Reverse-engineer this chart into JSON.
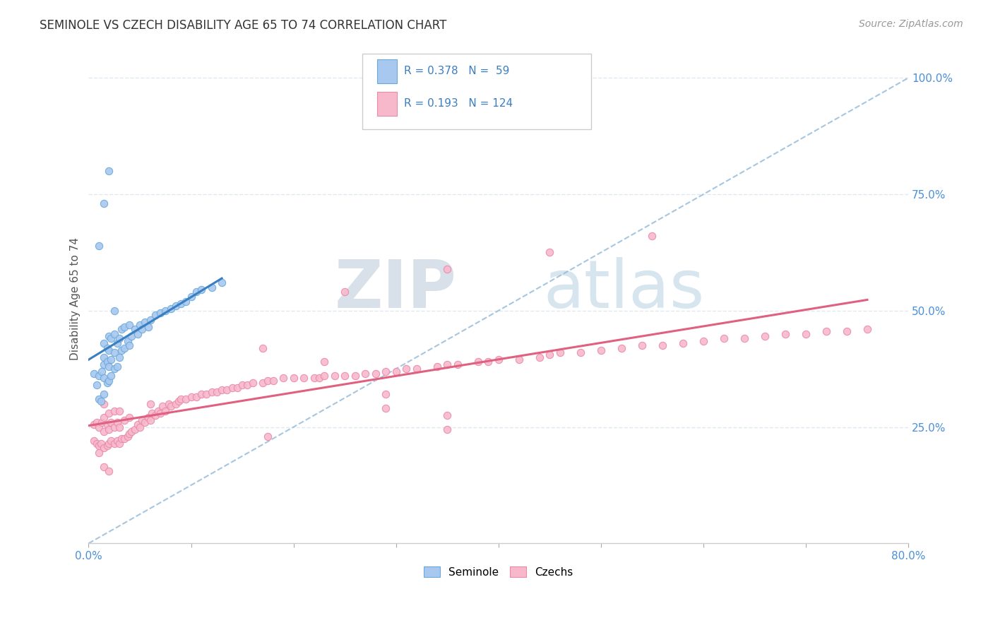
{
  "title": "SEMINOLE VS CZECH DISABILITY AGE 65 TO 74 CORRELATION CHART",
  "source_text": "Source: ZipAtlas.com",
  "ylabel": "Disability Age 65 to 74",
  "xlim": [
    0.0,
    0.8
  ],
  "ylim": [
    0.0,
    1.05
  ],
  "xticks": [
    0.0,
    0.1,
    0.2,
    0.3,
    0.4,
    0.5,
    0.6,
    0.7,
    0.8
  ],
  "xticklabels": [
    "0.0%",
    "",
    "",
    "",
    "",
    "",
    "",
    "",
    "80.0%"
  ],
  "ytick_positions": [
    0.25,
    0.5,
    0.75,
    1.0
  ],
  "ytick_labels": [
    "25.0%",
    "50.0%",
    "75.0%",
    "100.0%"
  ],
  "legend_r1": "R = 0.378",
  "legend_n1": "N =  59",
  "legend_r2": "R = 0.193",
  "legend_n2": "N = 124",
  "color_seminole_fill": "#a8c8f0",
  "color_seminole_edge": "#6aaad8",
  "color_czechs_fill": "#f8b8cc",
  "color_czechs_edge": "#e88aaa",
  "color_trend_seminole": "#3a7fc1",
  "color_trend_czechs": "#e06080",
  "color_ref_line": "#90b8d8",
  "color_grid": "#e0e8f0",
  "seminole_x": [
    0.005,
    0.008,
    0.01,
    0.01,
    0.012,
    0.013,
    0.015,
    0.015,
    0.015,
    0.015,
    0.015,
    0.018,
    0.018,
    0.018,
    0.02,
    0.02,
    0.02,
    0.02,
    0.022,
    0.022,
    0.022,
    0.025,
    0.025,
    0.025,
    0.028,
    0.028,
    0.03,
    0.03,
    0.032,
    0.032,
    0.035,
    0.035,
    0.038,
    0.04,
    0.04,
    0.042,
    0.045,
    0.048,
    0.05,
    0.052,
    0.055,
    0.058,
    0.06,
    0.065,
    0.07,
    0.075,
    0.08,
    0.085,
    0.09,
    0.095,
    0.1,
    0.105,
    0.11,
    0.12,
    0.13,
    0.01,
    0.015,
    0.02,
    0.025
  ],
  "seminole_y": [
    0.365,
    0.34,
    0.31,
    0.36,
    0.305,
    0.37,
    0.32,
    0.355,
    0.385,
    0.4,
    0.43,
    0.345,
    0.39,
    0.42,
    0.35,
    0.38,
    0.415,
    0.445,
    0.36,
    0.395,
    0.44,
    0.375,
    0.41,
    0.45,
    0.38,
    0.43,
    0.4,
    0.44,
    0.415,
    0.46,
    0.42,
    0.465,
    0.435,
    0.425,
    0.47,
    0.445,
    0.46,
    0.45,
    0.47,
    0.46,
    0.475,
    0.465,
    0.48,
    0.49,
    0.495,
    0.5,
    0.505,
    0.51,
    0.515,
    0.52,
    0.53,
    0.54,
    0.545,
    0.55,
    0.56,
    0.64,
    0.73,
    0.8,
    0.5
  ],
  "czech_x": [
    0.005,
    0.005,
    0.008,
    0.008,
    0.01,
    0.01,
    0.012,
    0.013,
    0.015,
    0.015,
    0.015,
    0.015,
    0.018,
    0.018,
    0.02,
    0.02,
    0.02,
    0.022,
    0.022,
    0.025,
    0.025,
    0.025,
    0.028,
    0.028,
    0.03,
    0.03,
    0.03,
    0.032,
    0.035,
    0.035,
    0.038,
    0.04,
    0.04,
    0.042,
    0.045,
    0.048,
    0.05,
    0.052,
    0.055,
    0.058,
    0.06,
    0.06,
    0.062,
    0.065,
    0.068,
    0.07,
    0.072,
    0.075,
    0.078,
    0.08,
    0.085,
    0.088,
    0.09,
    0.095,
    0.1,
    0.105,
    0.11,
    0.115,
    0.12,
    0.125,
    0.13,
    0.135,
    0.14,
    0.145,
    0.15,
    0.155,
    0.16,
    0.17,
    0.175,
    0.18,
    0.19,
    0.2,
    0.21,
    0.22,
    0.225,
    0.23,
    0.24,
    0.25,
    0.26,
    0.27,
    0.28,
    0.29,
    0.3,
    0.31,
    0.32,
    0.34,
    0.35,
    0.36,
    0.38,
    0.39,
    0.4,
    0.42,
    0.44,
    0.45,
    0.46,
    0.48,
    0.5,
    0.52,
    0.54,
    0.56,
    0.58,
    0.6,
    0.62,
    0.64,
    0.66,
    0.68,
    0.7,
    0.72,
    0.74,
    0.76,
    0.01,
    0.015,
    0.02,
    0.17,
    0.23,
    0.29,
    0.35,
    0.25,
    0.35,
    0.45,
    0.55,
    0.175,
    0.29,
    0.35
  ],
  "czech_y": [
    0.22,
    0.255,
    0.215,
    0.26,
    0.21,
    0.25,
    0.215,
    0.26,
    0.205,
    0.24,
    0.27,
    0.3,
    0.21,
    0.255,
    0.215,
    0.245,
    0.28,
    0.22,
    0.26,
    0.215,
    0.25,
    0.285,
    0.22,
    0.26,
    0.215,
    0.25,
    0.285,
    0.225,
    0.225,
    0.265,
    0.23,
    0.235,
    0.27,
    0.24,
    0.245,
    0.255,
    0.25,
    0.265,
    0.26,
    0.27,
    0.265,
    0.3,
    0.28,
    0.275,
    0.285,
    0.28,
    0.295,
    0.285,
    0.3,
    0.295,
    0.3,
    0.305,
    0.31,
    0.31,
    0.315,
    0.315,
    0.32,
    0.32,
    0.325,
    0.325,
    0.33,
    0.33,
    0.335,
    0.335,
    0.34,
    0.34,
    0.345,
    0.345,
    0.35,
    0.35,
    0.355,
    0.355,
    0.355,
    0.355,
    0.355,
    0.36,
    0.36,
    0.36,
    0.36,
    0.365,
    0.365,
    0.37,
    0.37,
    0.375,
    0.375,
    0.38,
    0.385,
    0.385,
    0.39,
    0.39,
    0.395,
    0.395,
    0.4,
    0.405,
    0.41,
    0.41,
    0.415,
    0.42,
    0.425,
    0.425,
    0.43,
    0.435,
    0.44,
    0.44,
    0.445,
    0.45,
    0.45,
    0.455,
    0.455,
    0.46,
    0.195,
    0.165,
    0.155,
    0.42,
    0.39,
    0.29,
    0.275,
    0.54,
    0.59,
    0.625,
    0.66,
    0.23,
    0.32,
    0.245
  ]
}
